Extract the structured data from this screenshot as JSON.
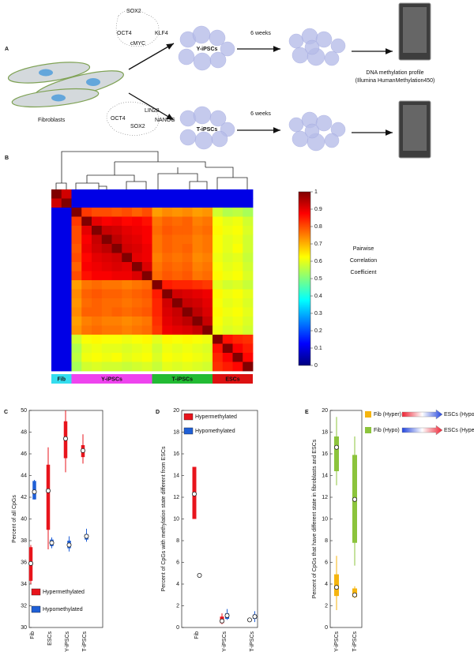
{
  "figure": {
    "panel_label": "A",
    "fibroblasts": "Fibroblasts",
    "top": {
      "factors": [
        "SOX2",
        "KLF4",
        "OCT4",
        "cMYC"
      ],
      "cell_label": "Y-iPSCs",
      "duration": "6 weeks"
    },
    "bottom": {
      "factors": [
        "LIN28",
        "OCT4",
        "NANOG",
        "SOX2"
      ],
      "cell_label": "T-iPSCs",
      "duration": "6 weeks"
    },
    "profile": [
      "DNA methylation profile",
      "(Illumina HumanMethylation450)"
    ]
  },
  "chart_data": [
    {
      "type": "heatmap",
      "panel_label": "B",
      "groups": [
        {
          "name": "Fib",
          "color": "#33ddee",
          "columns": 2
        },
        {
          "name": "Y-iPSCs",
          "color": "#ee44ee",
          "columns": 8
        },
        {
          "name": "T-iPSCs",
          "color": "#22bb33",
          "columns": 6
        },
        {
          "name": "ESCs",
          "color": "#dd1111",
          "columns": 4
        }
      ],
      "matrix": [
        [
          1,
          0.92,
          0.1,
          0.1,
          0.1,
          0.1,
          0.1,
          0.1,
          0.1,
          0.1,
          0.1,
          0.1,
          0.1,
          0.1,
          0.1,
          0.1,
          0.1,
          0.1,
          0.1,
          0.1
        ],
        [
          0.92,
          1,
          0.1,
          0.1,
          0.1,
          0.1,
          0.1,
          0.1,
          0.1,
          0.1,
          0.1,
          0.1,
          0.1,
          0.1,
          0.1,
          0.1,
          0.1,
          0.1,
          0.1,
          0.1
        ],
        [
          0.1,
          0.1,
          1,
          0.82,
          0.8,
          0.8,
          0.79,
          0.8,
          0.78,
          0.8,
          0.72,
          0.74,
          0.73,
          0.74,
          0.72,
          0.73,
          0.58,
          0.55,
          0.56,
          0.54
        ],
        [
          0.1,
          0.1,
          0.82,
          1,
          0.9,
          0.88,
          0.89,
          0.87,
          0.88,
          0.86,
          0.76,
          0.78,
          0.77,
          0.78,
          0.75,
          0.76,
          0.62,
          0.6,
          0.61,
          0.58
        ],
        [
          0.1,
          0.1,
          0.8,
          0.9,
          1,
          0.93,
          0.92,
          0.9,
          0.89,
          0.88,
          0.77,
          0.79,
          0.78,
          0.78,
          0.76,
          0.77,
          0.63,
          0.61,
          0.62,
          0.59
        ],
        [
          0.1,
          0.1,
          0.8,
          0.88,
          0.93,
          1,
          0.94,
          0.91,
          0.9,
          0.88,
          0.76,
          0.78,
          0.77,
          0.77,
          0.75,
          0.76,
          0.62,
          0.6,
          0.61,
          0.58
        ],
        [
          0.1,
          0.1,
          0.79,
          0.89,
          0.92,
          0.94,
          1,
          0.92,
          0.91,
          0.89,
          0.76,
          0.78,
          0.77,
          0.78,
          0.75,
          0.76,
          0.62,
          0.6,
          0.62,
          0.58
        ],
        [
          0.1,
          0.1,
          0.8,
          0.87,
          0.9,
          0.91,
          0.92,
          1,
          0.9,
          0.89,
          0.75,
          0.77,
          0.76,
          0.77,
          0.74,
          0.75,
          0.61,
          0.59,
          0.6,
          0.57
        ],
        [
          0.1,
          0.1,
          0.78,
          0.88,
          0.89,
          0.9,
          0.91,
          0.9,
          1,
          0.91,
          0.76,
          0.78,
          0.77,
          0.78,
          0.75,
          0.76,
          0.62,
          0.6,
          0.61,
          0.58
        ],
        [
          0.1,
          0.1,
          0.8,
          0.86,
          0.88,
          0.88,
          0.89,
          0.89,
          0.91,
          1,
          0.77,
          0.79,
          0.78,
          0.79,
          0.76,
          0.77,
          0.63,
          0.61,
          0.62,
          0.59
        ],
        [
          0.1,
          0.1,
          0.72,
          0.76,
          0.77,
          0.76,
          0.76,
          0.75,
          0.76,
          0.77,
          1,
          0.85,
          0.84,
          0.84,
          0.83,
          0.82,
          0.6,
          0.58,
          0.59,
          0.57
        ],
        [
          0.1,
          0.1,
          0.74,
          0.78,
          0.79,
          0.78,
          0.78,
          0.77,
          0.78,
          0.79,
          0.85,
          1,
          0.92,
          0.91,
          0.9,
          0.89,
          0.63,
          0.61,
          0.62,
          0.6
        ],
        [
          0.1,
          0.1,
          0.73,
          0.77,
          0.78,
          0.77,
          0.77,
          0.76,
          0.77,
          0.78,
          0.84,
          0.92,
          1,
          0.93,
          0.92,
          0.9,
          0.62,
          0.6,
          0.61,
          0.59
        ],
        [
          0.1,
          0.1,
          0.74,
          0.78,
          0.78,
          0.77,
          0.78,
          0.77,
          0.78,
          0.79,
          0.84,
          0.91,
          0.93,
          1,
          0.94,
          0.91,
          0.63,
          0.61,
          0.62,
          0.6
        ],
        [
          0.1,
          0.1,
          0.72,
          0.75,
          0.76,
          0.75,
          0.75,
          0.74,
          0.75,
          0.76,
          0.83,
          0.9,
          0.92,
          0.94,
          1,
          0.93,
          0.62,
          0.6,
          0.61,
          0.59
        ],
        [
          0.1,
          0.1,
          0.73,
          0.76,
          0.77,
          0.76,
          0.76,
          0.75,
          0.76,
          0.77,
          0.82,
          0.89,
          0.9,
          0.91,
          0.93,
          1,
          0.61,
          0.59,
          0.6,
          0.58
        ],
        [
          0.1,
          0.1,
          0.58,
          0.62,
          0.63,
          0.62,
          0.62,
          0.61,
          0.62,
          0.63,
          0.6,
          0.63,
          0.62,
          0.63,
          0.62,
          0.61,
          1,
          0.86,
          0.84,
          0.83
        ],
        [
          0.1,
          0.1,
          0.55,
          0.6,
          0.61,
          0.6,
          0.6,
          0.59,
          0.6,
          0.61,
          0.58,
          0.61,
          0.6,
          0.61,
          0.6,
          0.59,
          0.86,
          1,
          0.88,
          0.85
        ],
        [
          0.1,
          0.1,
          0.56,
          0.61,
          0.62,
          0.61,
          0.62,
          0.6,
          0.61,
          0.62,
          0.59,
          0.62,
          0.61,
          0.62,
          0.61,
          0.6,
          0.84,
          0.88,
          1,
          0.87
        ],
        [
          0.1,
          0.1,
          0.54,
          0.58,
          0.59,
          0.58,
          0.58,
          0.57,
          0.58,
          0.59,
          0.57,
          0.6,
          0.59,
          0.6,
          0.59,
          0.58,
          0.83,
          0.85,
          0.87,
          1
        ]
      ],
      "zlim": [
        0,
        1
      ],
      "zticks": [
        0,
        0.1,
        0.2,
        0.3,
        0.4,
        0.5,
        0.6,
        0.7,
        0.8,
        0.9,
        1
      ],
      "colorbar_title": [
        "Pairwise",
        "Correlation",
        "Coefficient"
      ]
    },
    {
      "type": "box",
      "panel_label": "C",
      "ylabel": "Percent of all CpGs",
      "categories": [
        "Fib",
        "ESCs",
        "Y-iPSCs",
        "T-iPSCs"
      ],
      "ylim": [
        30,
        50
      ],
      "yticks": [
        30,
        32,
        34,
        36,
        38,
        40,
        42,
        44,
        46,
        48,
        50
      ],
      "legend": "lower left",
      "series": [
        {
          "name": "Hypermethylated",
          "color": "#e8141c",
          "values": [
            {
              "low": 34.0,
              "q1": 34.3,
              "median": 35.9,
              "q3": 37.4,
              "high": 37.6
            },
            {
              "low": 37.2,
              "q1": 39.0,
              "median": 42.6,
              "q3": 45.0,
              "high": 46.6
            },
            {
              "low": 44.3,
              "q1": 45.6,
              "median": 47.4,
              "q3": 49.0,
              "high": 50.0
            },
            {
              "low": 45.1,
              "q1": 45.7,
              "median": 46.3,
              "q3": 46.8,
              "high": 47.8
            }
          ]
        },
        {
          "name": "Hypomethylated",
          "color": "#1f5fd6",
          "values": [
            {
              "low": 41.8,
              "q1": 41.8,
              "median": 42.5,
              "q3": 43.5,
              "high": 43.6
            },
            {
              "low": 37.3,
              "q1": 37.5,
              "median": 37.8,
              "q3": 38.1,
              "high": 38.3
            },
            {
              "low": 37.0,
              "q1": 37.3,
              "median": 37.6,
              "q3": 38.0,
              "high": 38.4
            },
            {
              "low": 37.9,
              "q1": 38.1,
              "median": 38.4,
              "q3": 38.6,
              "high": 39.1
            }
          ]
        }
      ]
    },
    {
      "type": "box",
      "panel_label": "D",
      "ylabel": "Percent of CpGs with methylation state different from ESCs",
      "categories": [
        "Fib",
        "Y-iPSCs",
        "T-iPSCs"
      ],
      "ylim": [
        0,
        20
      ],
      "yticks": [
        0,
        2,
        4,
        6,
        8,
        10,
        12,
        14,
        16,
        18,
        20
      ],
      "legend": "upper left",
      "series": [
        {
          "name": "Hypermethylated",
          "color": "#e8141c",
          "values": [
            {
              "low": 10.0,
              "q1": 10.0,
              "median": 12.3,
              "q3": 14.8,
              "high": 14.8
            },
            {
              "low": 0.3,
              "q1": 0.4,
              "median": 0.6,
              "q3": 1.0,
              "high": 1.3
            },
            {
              "low": 0.6,
              "q1": 0.6,
              "median": 0.7,
              "q3": 0.8,
              "high": 0.8
            }
          ]
        },
        {
          "name": "Hypomethylated",
          "color": "#1f5fd6",
          "values": [
            {
              "low": 4.7,
              "q1": 4.7,
              "median": 4.8,
              "q3": 4.9,
              "high": 5.0
            },
            {
              "low": 0.7,
              "q1": 0.8,
              "median": 1.1,
              "q3": 1.3,
              "high": 1.7
            },
            {
              "low": 0.5,
              "q1": 0.8,
              "median": 1.0,
              "q3": 1.2,
              "high": 1.5
            }
          ]
        }
      ]
    },
    {
      "type": "box",
      "panel_label": "E",
      "ylabel": "Percent of CpGs that have different state in fibroblasts and ESCs",
      "categories": [
        "Y-iPSCs",
        "T-iPSCs"
      ],
      "ylim": [
        0,
        20
      ],
      "yticks": [
        0,
        2,
        4,
        6,
        8,
        10,
        12,
        14,
        16,
        18,
        20
      ],
      "legend": "right",
      "series": [
        {
          "name": "Fib (Hyper)",
          "legend_target": "ESCs (Hypo)",
          "color": "#f5b50f",
          "values": [
            {
              "low": 1.6,
              "q1": 2.9,
              "median": 3.7,
              "q3": 4.9,
              "high": 6.6
            },
            {
              "low": 2.7,
              "q1": 2.8,
              "median": 3.0,
              "q3": 3.6,
              "high": 3.8
            }
          ]
        },
        {
          "name": "Fib (Hypo)",
          "legend_target": "ESCs (Hyper)",
          "color": "#8cc43c",
          "values": [
            {
              "low": 13.1,
              "q1": 14.4,
              "median": 16.6,
              "q3": 17.6,
              "high": 19.4
            },
            {
              "low": 5.7,
              "q1": 7.8,
              "median": 11.8,
              "q3": 15.9,
              "high": 17.6
            }
          ]
        }
      ]
    }
  ]
}
